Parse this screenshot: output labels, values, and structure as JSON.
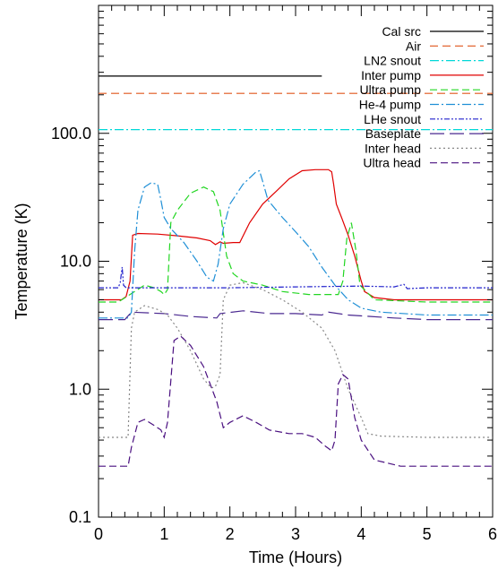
{
  "chart_data": {
    "type": "line",
    "title": "",
    "xlabel": "Time (Hours)",
    "ylabel": "Temperature (K)",
    "xlim": [
      0,
      6
    ],
    "ylim": [
      0.1,
      1000
    ],
    "yscale": "log",
    "grid": false,
    "legend_position": "top-right",
    "x_ticks": [
      0,
      1,
      2,
      3,
      4,
      5,
      6
    ],
    "x_tick_labels": [
      "0",
      "1",
      "2",
      "3",
      "4",
      "5",
      "6"
    ],
    "y_ticks": [
      0.1,
      1.0,
      10.0,
      100.0
    ],
    "y_tick_labels": [
      "0.1",
      "1.0",
      "10.0",
      "100.0"
    ],
    "series": [
      {
        "name": "Cal src",
        "color": "#000000",
        "dash": "",
        "points": [
          [
            0.0,
            280
          ],
          [
            3.4,
            280
          ]
        ]
      },
      {
        "name": "Air",
        "color": "#e0561c",
        "dash": "9,5",
        "points": [
          [
            0.0,
            205
          ],
          [
            3.6,
            205
          ],
          [
            5.0,
            205
          ],
          [
            6.0,
            205
          ]
        ]
      },
      {
        "name": "LN2 snout",
        "color": "#00d8d8",
        "dash": "10,3,2,3",
        "points": [
          [
            0.0,
            107
          ],
          [
            3.0,
            107
          ],
          [
            4.5,
            107
          ],
          [
            6.0,
            107
          ]
        ]
      },
      {
        "name": "Inter pump",
        "color": "#e00000",
        "dash": "",
        "points": [
          [
            0.0,
            5.0
          ],
          [
            0.35,
            5.0
          ],
          [
            0.42,
            5.3
          ],
          [
            0.48,
            7.0
          ],
          [
            0.52,
            16
          ],
          [
            0.6,
            16.5
          ],
          [
            0.9,
            16.3
          ],
          [
            1.2,
            15.8
          ],
          [
            1.5,
            15.2
          ],
          [
            1.7,
            14.5
          ],
          [
            1.78,
            13.5
          ],
          [
            1.85,
            14.2
          ],
          [
            1.9,
            13.8
          ],
          [
            2.05,
            14.0
          ],
          [
            2.15,
            14.0
          ],
          [
            2.3,
            20
          ],
          [
            2.5,
            28
          ],
          [
            2.7,
            35
          ],
          [
            2.9,
            44
          ],
          [
            3.1,
            51
          ],
          [
            3.3,
            52
          ],
          [
            3.5,
            52
          ],
          [
            3.55,
            50
          ],
          [
            3.58,
            40
          ],
          [
            3.62,
            28
          ],
          [
            3.7,
            22
          ],
          [
            3.8,
            16
          ],
          [
            3.9,
            11
          ],
          [
            4.0,
            7.0
          ],
          [
            4.05,
            5.8
          ],
          [
            4.2,
            5.2
          ],
          [
            4.5,
            5.0
          ],
          [
            5.0,
            5.0
          ],
          [
            5.5,
            5.0
          ],
          [
            6.0,
            5.0
          ]
        ]
      },
      {
        "name": "Ultra pump",
        "color": "#22d622",
        "dash": "8,4",
        "points": [
          [
            0.0,
            4.8
          ],
          [
            0.3,
            4.8
          ],
          [
            0.55,
            5.8
          ],
          [
            0.7,
            6.5
          ],
          [
            0.85,
            6.2
          ],
          [
            0.95,
            5.8
          ],
          [
            1.0,
            5.5
          ],
          [
            1.05,
            6.0
          ],
          [
            1.1,
            20
          ],
          [
            1.2,
            25
          ],
          [
            1.4,
            34
          ],
          [
            1.6,
            38
          ],
          [
            1.75,
            35
          ],
          [
            1.85,
            25
          ],
          [
            1.95,
            11
          ],
          [
            2.05,
            8.0
          ],
          [
            2.2,
            7.0
          ],
          [
            2.5,
            6.5
          ],
          [
            2.8,
            5.8
          ],
          [
            3.2,
            5.5
          ],
          [
            3.5,
            5.5
          ],
          [
            3.65,
            5.5
          ],
          [
            3.72,
            7.0
          ],
          [
            3.78,
            15
          ],
          [
            3.85,
            20
          ],
          [
            3.92,
            12
          ],
          [
            3.98,
            6.5
          ],
          [
            4.2,
            5.0
          ],
          [
            5.0,
            4.8
          ],
          [
            6.0,
            4.8
          ]
        ]
      },
      {
        "name": "He-4 pump",
        "color": "#1f8fd6",
        "dash": "10,3,2,3",
        "points": [
          [
            0.0,
            3.6
          ],
          [
            0.45,
            3.6
          ],
          [
            0.5,
            4.0
          ],
          [
            0.55,
            12
          ],
          [
            0.6,
            25
          ],
          [
            0.7,
            38
          ],
          [
            0.8,
            41
          ],
          [
            0.9,
            40
          ],
          [
            0.95,
            30
          ],
          [
            1.0,
            22
          ],
          [
            1.1,
            18
          ],
          [
            1.3,
            14
          ],
          [
            1.5,
            10
          ],
          [
            1.65,
            7.5
          ],
          [
            1.75,
            7.0
          ],
          [
            1.82,
            9.5
          ],
          [
            1.9,
            18
          ],
          [
            2.0,
            28
          ],
          [
            2.2,
            40
          ],
          [
            2.4,
            50
          ],
          [
            2.45,
            51
          ],
          [
            2.5,
            42
          ],
          [
            2.58,
            30
          ],
          [
            2.8,
            22
          ],
          [
            3.0,
            17
          ],
          [
            3.2,
            13
          ],
          [
            3.4,
            9.0
          ],
          [
            3.6,
            6.5
          ],
          [
            3.8,
            5.0
          ],
          [
            4.0,
            4.3
          ],
          [
            4.3,
            4.0
          ],
          [
            5.0,
            3.8
          ],
          [
            6.0,
            3.8
          ]
        ]
      },
      {
        "name": "LHe snout",
        "color": "#2020cc",
        "dash": "6,2,2,2,2,2",
        "points": [
          [
            0.0,
            6.2
          ],
          [
            0.3,
            6.2
          ],
          [
            0.33,
            6.8
          ],
          [
            0.36,
            9.0
          ],
          [
            0.38,
            6.5
          ],
          [
            0.42,
            6.2
          ],
          [
            1.0,
            6.2
          ],
          [
            2.0,
            6.2
          ],
          [
            3.0,
            6.3
          ],
          [
            4.0,
            6.4
          ],
          [
            4.5,
            6.3
          ],
          [
            4.65,
            6.6
          ],
          [
            4.7,
            6.1
          ],
          [
            5.0,
            6.2
          ],
          [
            6.0,
            6.2
          ]
        ]
      },
      {
        "name": "Baseplate",
        "color": "#4a2890",
        "dash": "16,6",
        "points": [
          [
            0.0,
            3.5
          ],
          [
            0.4,
            3.5
          ],
          [
            0.5,
            4.0
          ],
          [
            1.0,
            3.9
          ],
          [
            1.4,
            3.7
          ],
          [
            1.8,
            3.6
          ],
          [
            1.85,
            3.9
          ],
          [
            2.2,
            4.1
          ],
          [
            2.6,
            3.9
          ],
          [
            3.0,
            3.9
          ],
          [
            3.4,
            3.8
          ],
          [
            3.5,
            4.0
          ],
          [
            3.8,
            3.8
          ],
          [
            4.5,
            3.6
          ],
          [
            5.0,
            3.5
          ],
          [
            6.0,
            3.5
          ]
        ]
      },
      {
        "name": "Inter head",
        "color": "#888888",
        "dash": "2,3",
        "points": [
          [
            0.0,
            0.42
          ],
          [
            0.45,
            0.42
          ],
          [
            0.5,
            3.0
          ],
          [
            0.55,
            4.0
          ],
          [
            0.7,
            4.5
          ],
          [
            0.9,
            4.2
          ],
          [
            1.05,
            3.8
          ],
          [
            1.2,
            3.0
          ],
          [
            1.4,
            2.0
          ],
          [
            1.6,
            1.2
          ],
          [
            1.72,
            1.02
          ],
          [
            1.78,
            1.05
          ],
          [
            1.85,
            1.3
          ],
          [
            1.9,
            5.0
          ],
          [
            2.0,
            6.5
          ],
          [
            2.2,
            6.8
          ],
          [
            2.5,
            6.0
          ],
          [
            2.8,
            5.0
          ],
          [
            3.1,
            4.0
          ],
          [
            3.4,
            3.0
          ],
          [
            3.6,
            2.0
          ],
          [
            3.8,
            1.0
          ],
          [
            4.0,
            0.6
          ],
          [
            4.1,
            0.45
          ],
          [
            4.3,
            0.43
          ],
          [
            5.0,
            0.42
          ],
          [
            6.0,
            0.42
          ]
        ]
      },
      {
        "name": "Ultra head",
        "color": "#4a1080",
        "dash": "8,4",
        "points": [
          [
            0.0,
            0.25
          ],
          [
            0.45,
            0.25
          ],
          [
            0.5,
            0.35
          ],
          [
            0.6,
            0.55
          ],
          [
            0.7,
            0.58
          ],
          [
            0.85,
            0.52
          ],
          [
            0.95,
            0.48
          ],
          [
            1.0,
            0.42
          ],
          [
            1.05,
            0.55
          ],
          [
            1.15,
            2.4
          ],
          [
            1.25,
            2.6
          ],
          [
            1.4,
            2.2
          ],
          [
            1.6,
            1.5
          ],
          [
            1.8,
            0.8
          ],
          [
            1.9,
            0.5
          ],
          [
            2.0,
            0.55
          ],
          [
            2.2,
            0.62
          ],
          [
            2.4,
            0.55
          ],
          [
            2.6,
            0.48
          ],
          [
            2.9,
            0.45
          ],
          [
            3.1,
            0.45
          ],
          [
            3.3,
            0.42
          ],
          [
            3.45,
            0.36
          ],
          [
            3.55,
            0.33
          ],
          [
            3.6,
            0.4
          ],
          [
            3.65,
            1.1
          ],
          [
            3.72,
            1.3
          ],
          [
            3.8,
            1.2
          ],
          [
            3.9,
            0.6
          ],
          [
            4.0,
            0.4
          ],
          [
            4.2,
            0.28
          ],
          [
            4.6,
            0.25
          ],
          [
            5.0,
            0.25
          ],
          [
            6.0,
            0.25
          ]
        ]
      }
    ]
  }
}
